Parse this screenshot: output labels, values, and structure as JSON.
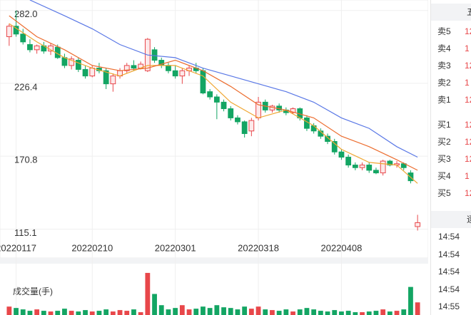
{
  "chart_data": {
    "type": "candlestick",
    "categories": [
      null,
      "20220117",
      null,
      null,
      null,
      null,
      null,
      null,
      null,
      null,
      null,
      null,
      "20220210",
      null,
      null,
      null,
      null,
      null,
      null,
      null,
      null,
      null,
      null,
      null,
      "20220301",
      null,
      null,
      null,
      null,
      null,
      null,
      null,
      null,
      null,
      null,
      null,
      "20220318",
      null,
      null,
      null,
      null,
      null,
      null,
      null,
      null,
      null,
      null,
      null,
      "20220408",
      null,
      null,
      null,
      null,
      null,
      null,
      null,
      null,
      null,
      null,
      null
    ],
    "open": [
      262,
      270,
      264,
      256,
      252,
      255,
      251,
      254,
      246,
      240,
      244,
      237,
      232,
      238,
      236,
      226,
      232,
      236,
      240,
      238,
      236,
      252,
      244,
      240,
      236,
      232,
      236,
      238,
      236,
      220,
      216,
      212,
      207,
      200,
      197,
      190,
      200,
      212,
      206,
      209,
      206,
      204,
      207,
      200,
      194,
      190,
      186,
      182,
      174,
      170,
      164,
      162,
      164,
      160,
      158,
      167,
      164,
      165,
      158,
      117
    ],
    "high": [
      272,
      282,
      268,
      260,
      256,
      258,
      257,
      256,
      249,
      247,
      246,
      240,
      240,
      242,
      238,
      234,
      238,
      242,
      244,
      243,
      261,
      254,
      246,
      242,
      240,
      238,
      240,
      242,
      238,
      222,
      218,
      214,
      209,
      202,
      198,
      200,
      216,
      214,
      210,
      211,
      208,
      208,
      208,
      202,
      196,
      192,
      188,
      184,
      176,
      172,
      166,
      166,
      166,
      162,
      168,
      168,
      167,
      166,
      160,
      126
    ],
    "low": [
      255,
      262,
      256,
      250,
      249,
      249,
      248,
      245,
      238,
      237,
      235,
      230,
      231,
      234,
      222,
      220,
      230,
      234,
      236,
      237,
      235,
      242,
      238,
      234,
      230,
      226,
      232,
      234,
      218,
      214,
      199,
      205,
      198,
      195,
      185,
      186,
      198,
      204,
      204,
      204,
      202,
      203,
      198,
      190,
      188,
      184,
      180,
      172,
      168,
      162,
      160,
      160,
      158,
      157,
      156,
      163,
      162,
      160,
      150,
      114
    ],
    "close": [
      270,
      264,
      258,
      252,
      255,
      251,
      255,
      246,
      240,
      245,
      237,
      232,
      238,
      236,
      226,
      232,
      236,
      240,
      238,
      241,
      260,
      244,
      240,
      236,
      232,
      236,
      238,
      236,
      219,
      216,
      212,
      207,
      200,
      197,
      188,
      198,
      212,
      206,
      209,
      206,
      204,
      207,
      200,
      192,
      190,
      186,
      182,
      174,
      170,
      164,
      162,
      164,
      160,
      158,
      167,
      164,
      165,
      162,
      152,
      120
    ],
    "up_color": "#e8474a",
    "down_color": "#13a563",
    "ylim": [
      105,
      290
    ],
    "yticks": [
      {
        "value": 282,
        "label": "282.0"
      },
      {
        "value": 226.4,
        "label": "226.4"
      },
      {
        "value": 170.8,
        "label": "170.8"
      },
      {
        "value": 115.1,
        "label": "115.1"
      }
    ],
    "grid": true,
    "lines": [
      {
        "color": "#f0a733",
        "x": [
          0,
          4,
          8,
          12,
          16,
          20,
          24,
          28,
          32,
          36,
          40,
          44,
          48,
          52,
          56,
          59
        ],
        "values": [
          272,
          258,
          246,
          238,
          232,
          240,
          240,
          232,
          212,
          200,
          206,
          194,
          176,
          166,
          164,
          150
        ]
      },
      {
        "color": "#ec6d2f",
        "x": [
          0,
          4,
          8,
          12,
          16,
          20,
          24,
          28,
          32,
          36,
          40,
          44,
          48,
          52,
          56,
          59
        ],
        "values": [
          278,
          262,
          252,
          240,
          236,
          238,
          244,
          236,
          224,
          210,
          206,
          200,
          186,
          178,
          168,
          160
        ]
      },
      {
        "color": "#5a78e6",
        "x": [
          3,
          8,
          12,
          16,
          20,
          24,
          28,
          32,
          36,
          40,
          44,
          48,
          52,
          56,
          59
        ],
        "values": [
          290,
          278,
          268,
          256,
          248,
          246,
          238,
          232,
          226,
          220,
          212,
          200,
          192,
          178,
          170
        ]
      }
    ],
    "volume": {
      "title": "成交量(手)",
      "ylim": [
        0,
        65
      ],
      "values": [
        12,
        10,
        8,
        6,
        8,
        6,
        5,
        6,
        9,
        6,
        5,
        7,
        5,
        6,
        8,
        5,
        7,
        6,
        8,
        4,
        60,
        30,
        14,
        8,
        10,
        14,
        8,
        9,
        12,
        10,
        14,
        11,
        10,
        8,
        12,
        9,
        12,
        8,
        7,
        6,
        8,
        5,
        8,
        10,
        8,
        6,
        5,
        7,
        5,
        6,
        4,
        4,
        5,
        6,
        8,
        5,
        6,
        8,
        40,
        18
      ]
    }
  },
  "order_book": {
    "header": "五",
    "rows": [
      {
        "label": "卖5",
        "value": "12"
      },
      {
        "label": "卖4",
        "value": "1"
      },
      {
        "label": "卖3",
        "value": "12"
      },
      {
        "label": "卖2",
        "value": "1"
      },
      {
        "label": "卖1",
        "value": "12"
      },
      {
        "label": "买1",
        "value": "12"
      },
      {
        "label": "买2",
        "value": "12"
      },
      {
        "label": "买3",
        "value": "12"
      },
      {
        "label": "买4",
        "value": "1"
      },
      {
        "label": "买5",
        "value": "12"
      }
    ],
    "trades_header": "逐",
    "trades": [
      "14:54",
      "14:54",
      "14:54",
      "14:54",
      "14:55"
    ]
  }
}
